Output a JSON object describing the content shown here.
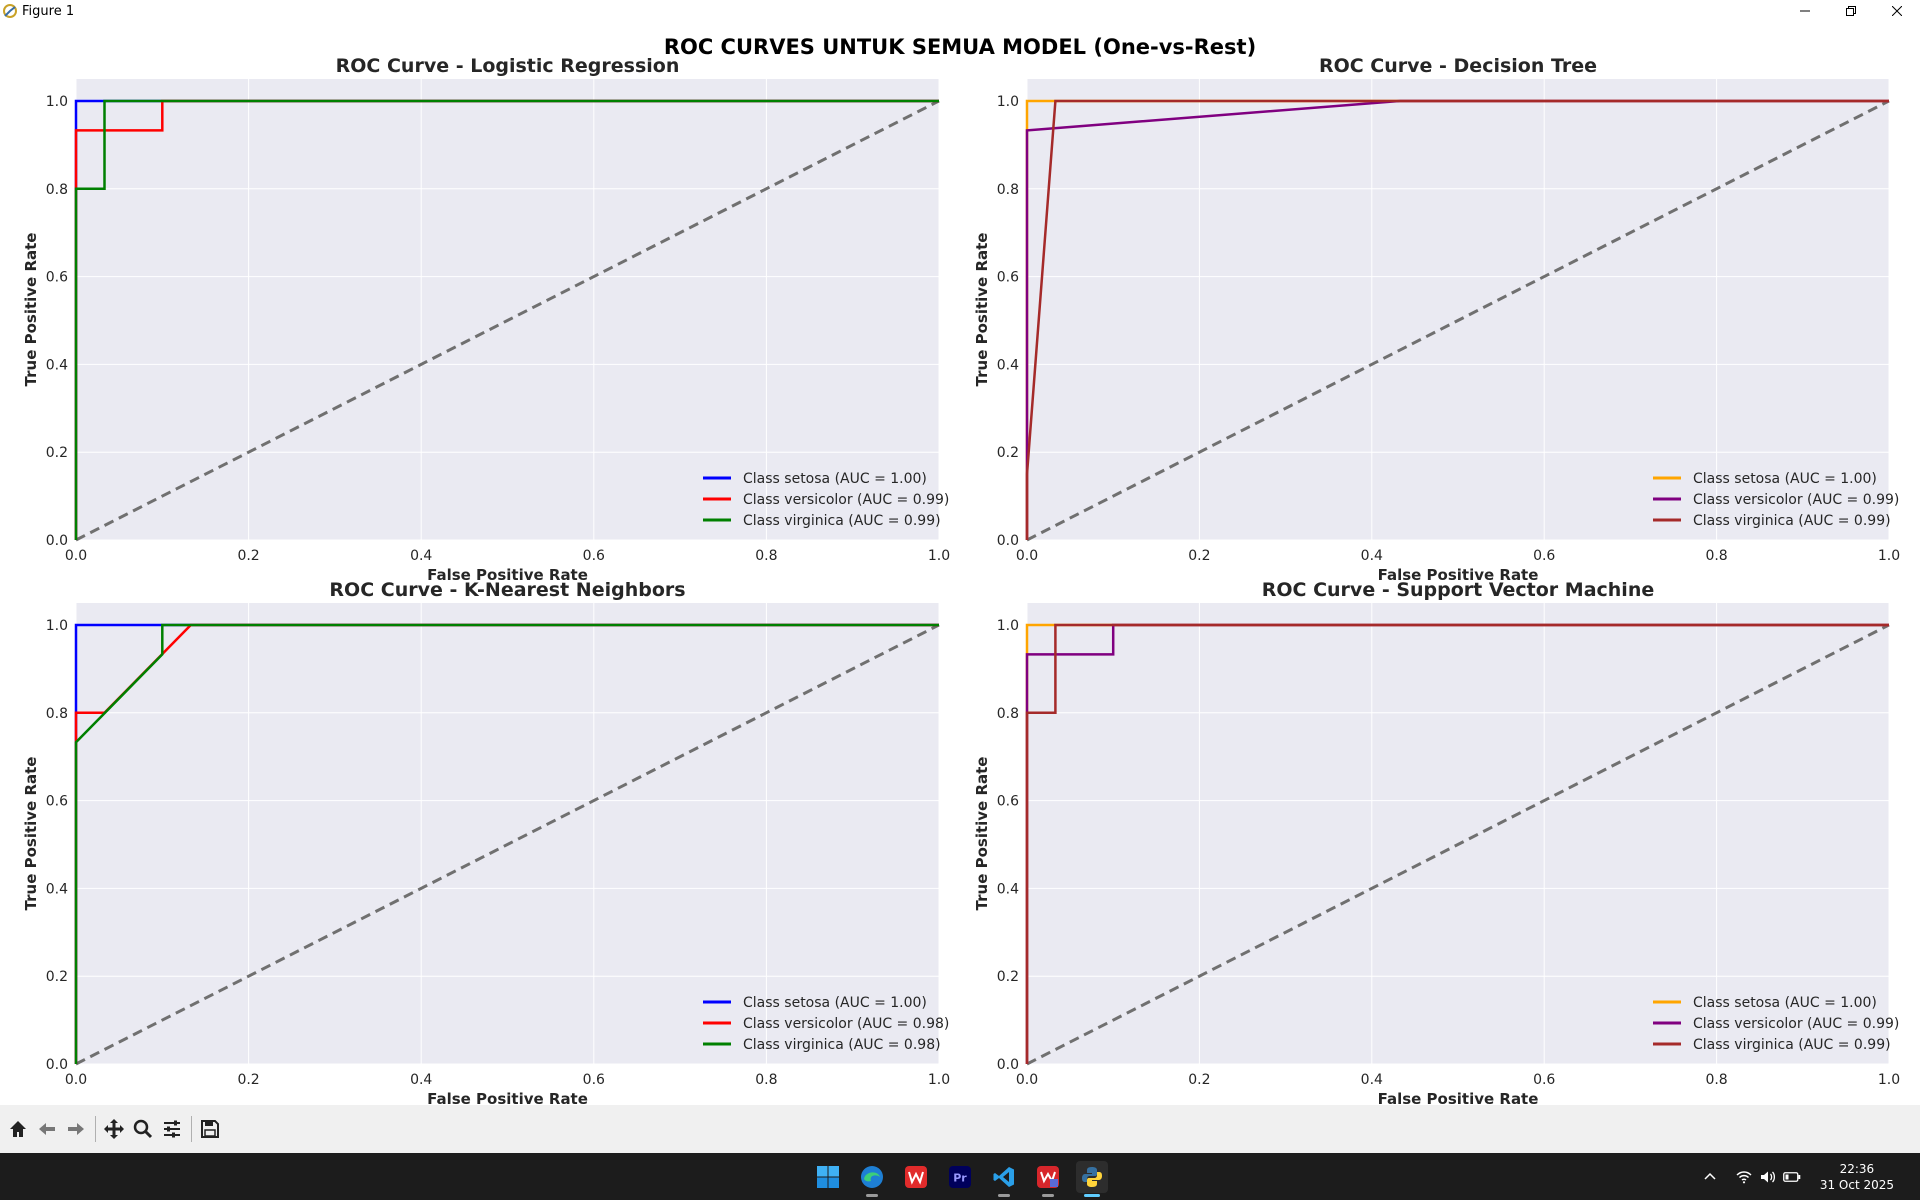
{
  "window": {
    "title": "Figure 1",
    "icons": [
      "python-figure-icon",
      "minimize-icon",
      "maximize-icon",
      "close-icon"
    ]
  },
  "figure": {
    "suptitle": "ROC CURVES UNTUK SEMUA MODEL (One-vs-Rest)"
  },
  "chart_data": [
    {
      "type": "line",
      "title": "ROC Curve - Logistic Regression",
      "xlabel": "False Positive Rate",
      "ylabel": "True Positive Rate",
      "xlim": [
        0,
        1
      ],
      "ylim": [
        0,
        1.05
      ],
      "xticks": [
        "0.0",
        "0.2",
        "0.4",
        "0.6",
        "0.8",
        "1.0"
      ],
      "yticks": [
        "0.0",
        "0.2",
        "0.4",
        "0.6",
        "0.8",
        "1.0"
      ],
      "grid": true,
      "legend_position": "lower right",
      "diagonal": {
        "x": [
          0,
          1
        ],
        "y": [
          0,
          1
        ],
        "color": "#707070",
        "style": "dashed"
      },
      "series": [
        {
          "name": "Class setosa (AUC = 1.00)",
          "color": "#0000ff",
          "x": [
            0,
            0,
            0.033,
            1
          ],
          "y": [
            0,
            1.0,
            1.0,
            1.0
          ]
        },
        {
          "name": "Class versicolor (AUC = 0.99)",
          "color": "#ff0000",
          "x": [
            0,
            0,
            0.1,
            0.1,
            1
          ],
          "y": [
            0,
            0.933,
            0.933,
            1.0,
            1.0
          ]
        },
        {
          "name": "Class virginica (AUC = 0.99)",
          "color": "#008000",
          "x": [
            0,
            0,
            0.033,
            0.033,
            1
          ],
          "y": [
            0,
            0.8,
            0.8,
            1.0,
            1.0
          ]
        }
      ]
    },
    {
      "type": "line",
      "title": "ROC Curve - Decision Tree",
      "xlabel": "False Positive Rate",
      "ylabel": "True Positive Rate",
      "xlim": [
        0,
        1
      ],
      "ylim": [
        0,
        1.05
      ],
      "xticks": [
        "0.0",
        "0.2",
        "0.4",
        "0.6",
        "0.8",
        "1.0"
      ],
      "yticks": [
        "0.0",
        "0.2",
        "0.4",
        "0.6",
        "0.8",
        "1.0"
      ],
      "grid": true,
      "legend_position": "lower right",
      "diagonal": {
        "x": [
          0,
          1
        ],
        "y": [
          0,
          1
        ],
        "color": "#707070",
        "style": "dashed"
      },
      "series": [
        {
          "name": "Class setosa (AUC = 1.00)",
          "color": "#ffa500",
          "x": [
            0,
            0,
            0.033,
            1
          ],
          "y": [
            0,
            1.0,
            1.0,
            1.0
          ]
        },
        {
          "name": "Class versicolor (AUC = 0.99)",
          "color": "#800080",
          "x": [
            0,
            0,
            0.433,
            1
          ],
          "y": [
            0,
            0.933,
            1.0,
            1.0
          ]
        },
        {
          "name": "Class virginica (AUC = 0.99)",
          "color": "#a52a2a",
          "x": [
            0,
            0,
            0.033,
            1
          ],
          "y": [
            0,
            0.15,
            1.0,
            1.0
          ]
        }
      ]
    },
    {
      "type": "line",
      "title": "ROC Curve - K-Nearest Neighbors",
      "xlabel": "False Positive Rate",
      "ylabel": "True Positive Rate",
      "xlim": [
        0,
        1
      ],
      "ylim": [
        0,
        1.05
      ],
      "xticks": [
        "0.0",
        "0.2",
        "0.4",
        "0.6",
        "0.8",
        "1.0"
      ],
      "yticks": [
        "0.0",
        "0.2",
        "0.4",
        "0.6",
        "0.8",
        "1.0"
      ],
      "grid": true,
      "legend_position": "lower right",
      "diagonal": {
        "x": [
          0,
          1
        ],
        "y": [
          0,
          1
        ],
        "color": "#707070",
        "style": "dashed"
      },
      "series": [
        {
          "name": "Class setosa (AUC = 1.00)",
          "color": "#0000ff",
          "x": [
            0,
            0,
            0.1,
            1
          ],
          "y": [
            0,
            1.0,
            1.0,
            1.0
          ]
        },
        {
          "name": "Class versicolor (AUC = 0.98)",
          "color": "#ff0000",
          "x": [
            0,
            0,
            0.033,
            0.133,
            1
          ],
          "y": [
            0,
            0.8,
            0.8,
            1.0,
            1.0
          ]
        },
        {
          "name": "Class virginica (AUC = 0.98)",
          "color": "#008000",
          "x": [
            0,
            0,
            0.1,
            0.1,
            1
          ],
          "y": [
            0,
            0.733,
            0.933,
            1.0,
            1.0
          ]
        }
      ]
    },
    {
      "type": "line",
      "title": "ROC Curve - Support Vector Machine",
      "xlabel": "False Positive Rate",
      "ylabel": "True Positive Rate",
      "xlim": [
        0,
        1
      ],
      "ylim": [
        0,
        1.05
      ],
      "xticks": [
        "0.0",
        "0.2",
        "0.4",
        "0.6",
        "0.8",
        "1.0"
      ],
      "yticks": [
        "0.0",
        "0.2",
        "0.4",
        "0.6",
        "0.8",
        "1.0"
      ],
      "grid": true,
      "legend_position": "lower right",
      "diagonal": {
        "x": [
          0,
          1
        ],
        "y": [
          0,
          1
        ],
        "color": "#707070",
        "style": "dashed"
      },
      "series": [
        {
          "name": "Class setosa (AUC = 1.00)",
          "color": "#ffa500",
          "x": [
            0,
            0,
            0.033,
            1
          ],
          "y": [
            0,
            1.0,
            1.0,
            1.0
          ]
        },
        {
          "name": "Class versicolor (AUC = 0.99)",
          "color": "#800080",
          "x": [
            0,
            0,
            0.1,
            0.1,
            1
          ],
          "y": [
            0,
            0.933,
            0.933,
            1.0,
            1.0
          ]
        },
        {
          "name": "Class virginica (AUC = 0.99)",
          "color": "#a52a2a",
          "x": [
            0,
            0,
            0.033,
            0.033,
            1
          ],
          "y": [
            0,
            0.8,
            0.8,
            1.0,
            1.0
          ]
        }
      ]
    }
  ],
  "toolbar": {
    "buttons": [
      "home-icon",
      "back-icon",
      "forward-icon",
      "pan-icon",
      "zoom-icon",
      "configure-subplots-icon",
      "save-icon"
    ]
  },
  "taskbar": {
    "apps": [
      "windows-start-icon",
      "edge-icon",
      "wps-office-icon",
      "premiere-pro-icon",
      "vscode-icon",
      "wps-pdf-icon",
      "python-icon"
    ],
    "tray_icons": [
      "chevron-up-icon",
      "wifi-icon",
      "volume-icon",
      "battery-icon"
    ],
    "time": "22:36",
    "date": "31 Oct 2025"
  }
}
